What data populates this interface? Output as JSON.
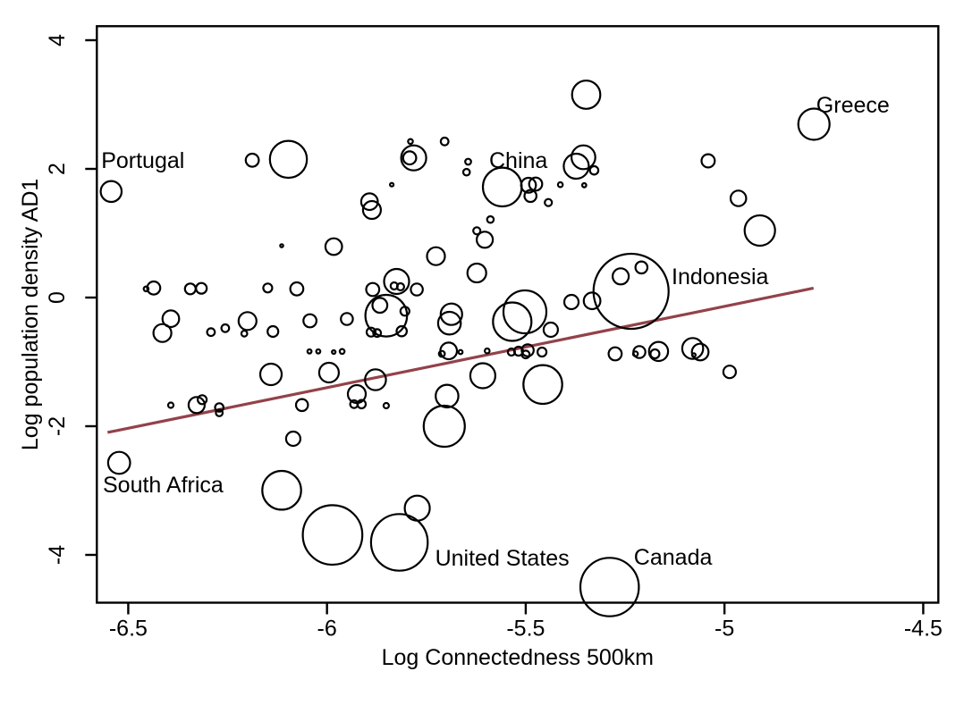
{
  "chart_data": {
    "type": "scatter",
    "title": "",
    "xlabel": "Log Connectedness 500km",
    "ylabel": "Log population density AD1",
    "xlim": [
      -6.579,
      -4.462
    ],
    "ylim": [
      -4.743,
      4.218
    ],
    "grid": false,
    "legend": "none",
    "x_ticks": [
      -6.5,
      -6,
      -5.5,
      -5,
      -4.5
    ],
    "x_tick_labels": [
      "-6.5",
      "-6",
      "-5.5",
      "-5",
      "-4.5"
    ],
    "y_ticks": [
      4,
      2,
      0,
      -2,
      -4
    ],
    "y_tick_labels": [
      "4",
      "2",
      "0",
      "-2",
      "-4"
    ],
    "bubble_stroke_color": "#000000",
    "trend_line": {
      "color": "#93424a",
      "x1": -6.552,
      "y1": -2.097,
      "x2": -4.776,
      "y2": 0.146
    },
    "country_labels": [
      {
        "text": "Portugal",
        "x": -6.568,
        "y": 2.014
      },
      {
        "text": "South Africa",
        "x": -6.564,
        "y": -3.028
      },
      {
        "text": "China",
        "x": -5.592,
        "y": 2.014
      },
      {
        "text": "Greece",
        "x": -4.769,
        "y": 2.875
      },
      {
        "text": "Indonesia",
        "x": -5.133,
        "y": 0.208
      },
      {
        "text": "United States",
        "x": -5.728,
        "y": -4.167
      },
      {
        "text": "Canada",
        "x": -5.228,
        "y": -4.153
      }
    ],
    "bubbles": [
      [
        -6.543,
        1.649,
        11.7
      ],
      [
        -6.455,
        0.135,
        2.7
      ],
      [
        -6.436,
        0.149,
        7.3
      ],
      [
        -6.344,
        0.135,
        6.0
      ],
      [
        -6.316,
        0.143,
        6.0
      ],
      [
        -6.149,
        0.149,
        5.0
      ],
      [
        -6.076,
        0.135,
        7.3
      ],
      [
        -6.393,
        -0.329,
        9.3
      ],
      [
        -6.414,
        -0.551,
        10.0
      ],
      [
        -6.292,
        -0.537,
        4.3
      ],
      [
        -6.256,
        -0.476,
        4.3
      ],
      [
        -6.2,
        -0.365,
        10.0
      ],
      [
        -6.208,
        -0.56,
        3.3
      ],
      [
        -6.136,
        -0.528,
        6.0
      ],
      [
        -6.043,
        -0.361,
        7.3
      ],
      [
        -5.95,
        -0.333,
        6.7
      ],
      [
        -6.044,
        -0.838,
        2.3
      ],
      [
        -6.022,
        -0.838,
        2.3
      ],
      [
        -5.983,
        -0.847,
        2.0
      ],
      [
        -5.962,
        -0.838,
        2.7
      ],
      [
        -6.141,
        -1.194,
        12.0
      ],
      [
        -5.995,
        -1.167,
        11.0
      ],
      [
        -6.393,
        -1.674,
        3.0
      ],
      [
        -6.328,
        -1.671,
        9.0
      ],
      [
        -6.314,
        -1.588,
        5.0
      ],
      [
        -6.271,
        -1.708,
        4.7
      ],
      [
        -6.271,
        -1.792,
        3.8
      ],
      [
        -6.063,
        -1.671,
        6.7
      ],
      [
        -5.932,
        -1.657,
        4.3
      ],
      [
        -5.913,
        -1.657,
        4.7
      ],
      [
        -5.925,
        -1.5,
        10.0
      ],
      [
        -5.878,
        -1.278,
        11.7
      ],
      [
        -5.851,
        -1.681,
        3.0
      ],
      [
        -6.085,
        -2.194,
        8.0
      ],
      [
        -6.523,
        -2.569,
        12.3
      ],
      [
        -6.114,
        -2.996,
        21.7
      ],
      [
        -5.986,
        -3.69,
        33.3
      ],
      [
        -5.818,
        -3.806,
        31.7
      ],
      [
        -5.773,
        -3.274,
        14.0
      ],
      [
        -5.289,
        -4.5,
        32.7
      ],
      [
        -5.705,
        -2.0,
        23.0
      ],
      [
        -5.698,
        -1.532,
        12.7
      ],
      [
        -5.608,
        -1.215,
        14.0
      ],
      [
        -5.457,
        -1.351,
        21.7
      ],
      [
        -5.825,
        0.25,
        14.0
      ],
      [
        -5.831,
        0.181,
        4.0
      ],
      [
        -5.815,
        0.167,
        4.0
      ],
      [
        -5.885,
        0.125,
        7.3
      ],
      [
        -5.774,
        0.125,
        6.7
      ],
      [
        -5.623,
        0.382,
        10.5
      ],
      [
        -5.851,
        -0.282,
        23.3
      ],
      [
        -5.867,
        -0.121,
        8.3
      ],
      [
        -5.804,
        -0.213,
        5.0
      ],
      [
        -5.889,
        -0.537,
        5.0
      ],
      [
        -5.874,
        -0.551,
        4.3
      ],
      [
        -5.812,
        -0.524,
        5.7
      ],
      [
        -5.687,
        -0.26,
        12.0
      ],
      [
        -5.692,
        -0.399,
        12.7
      ],
      [
        -5.694,
        -0.829,
        9.3
      ],
      [
        -5.711,
        -0.875,
        3.3
      ],
      [
        -5.664,
        -0.847,
        2.3
      ],
      [
        -5.597,
        -0.829,
        2.7
      ],
      [
        -5.536,
        -0.847,
        4.0
      ],
      [
        -5.518,
        -0.833,
        5.0
      ],
      [
        -5.495,
        -0.819,
        6.7
      ],
      [
        -5.5,
        -0.885,
        4.3
      ],
      [
        -5.459,
        -0.847,
        5.0
      ],
      [
        -5.502,
        -0.222,
        24.0
      ],
      [
        -5.534,
        -0.375,
        21.5
      ],
      [
        -5.437,
        -0.5,
        8.0
      ],
      [
        -5.385,
        -0.069,
        8.0
      ],
      [
        -5.333,
        -0.051,
        9.3
      ],
      [
        -5.235,
        0.097,
        42.0
      ],
      [
        -5.261,
        0.329,
        9.0
      ],
      [
        -5.209,
        0.468,
        6.7
      ],
      [
        -5.275,
        -0.875,
        7.3
      ],
      [
        -5.214,
        -0.847,
        6.7
      ],
      [
        -5.224,
        -0.875,
        2.7
      ],
      [
        -5.166,
        -0.838,
        10.7
      ],
      [
        -5.175,
        -0.875,
        5.0
      ],
      [
        -5.08,
        -0.792,
        11.7
      ],
      [
        -5.061,
        -0.847,
        9.3
      ],
      [
        -5.077,
        -0.893,
        2.0
      ],
      [
        -4.987,
        -1.155,
        7.0
      ],
      [
        -5.348,
        3.153,
        15.8
      ],
      [
        -5.355,
        2.181,
        13.3
      ],
      [
        -5.373,
        2.042,
        14.0
      ],
      [
        -5.328,
        1.976,
        4.7
      ],
      [
        -5.413,
        1.754,
        2.7
      ],
      [
        -5.353,
        1.746,
        2.3
      ],
      [
        -5.559,
        1.718,
        21.7
      ],
      [
        -5.493,
        1.746,
        8.3
      ],
      [
        -5.475,
        1.764,
        7.3
      ],
      [
        -5.488,
        1.579,
        6.7
      ],
      [
        -5.443,
        1.476,
        4.0
      ],
      [
        -5.589,
        1.213,
        3.7
      ],
      [
        -5.623,
        1.038,
        4.0
      ],
      [
        -5.603,
        0.899,
        9.0
      ],
      [
        -5.726,
        0.643,
        10.0
      ],
      [
        -5.782,
        2.171,
        14.0
      ],
      [
        -5.792,
        2.171,
        7.3
      ],
      [
        -5.79,
        2.426,
        2.7
      ],
      [
        -5.704,
        2.426,
        4.3
      ],
      [
        -5.645,
        2.111,
        3.3
      ],
      [
        -5.649,
        1.949,
        3.7
      ],
      [
        -5.837,
        1.754,
        2.0
      ],
      [
        -5.893,
        1.49,
        9.3
      ],
      [
        -5.887,
        1.361,
        10.0
      ],
      [
        -6.188,
        2.135,
        7.3
      ],
      [
        -6.097,
        2.149,
        20.7
      ],
      [
        -6.114,
        0.806,
        1.7
      ],
      [
        -5.983,
        0.792,
        9.3
      ],
      [
        -4.775,
        2.694,
        17.5
      ],
      [
        -5.041,
        2.125,
        7.4
      ],
      [
        -4.965,
        1.542,
        8.7
      ],
      [
        -4.911,
        1.042,
        17.0
      ]
    ]
  }
}
